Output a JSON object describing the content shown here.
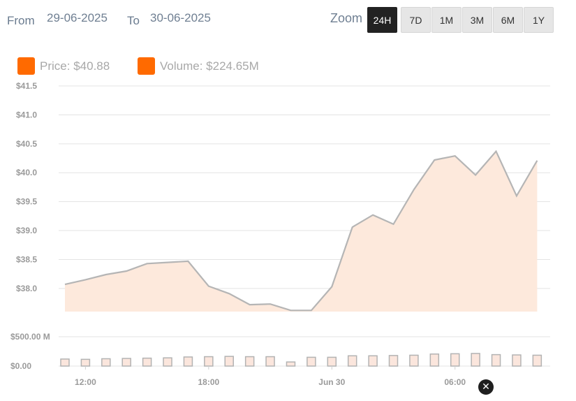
{
  "range": {
    "from_label": "From",
    "from_value": "29-06-2025",
    "to_label": "To",
    "to_value": "30-06-2025"
  },
  "zoom": {
    "label": "Zoom",
    "buttons": [
      "24H",
      "7D",
      "1M",
      "3M",
      "6M",
      "1Y"
    ],
    "active": "24H"
  },
  "legend": {
    "price_label": "Price:",
    "price_value": "$40.88",
    "volume_label": "Volume:",
    "volume_value": "$224.65M",
    "price_color": "#ff6a00",
    "volume_color": "#ff6a00"
  },
  "reset_icon": "close-circle-icon",
  "chart_data": {
    "type": "area",
    "price_axis": {
      "min": 37.6,
      "max": 41.5,
      "ticks": [
        "$38.0",
        "$38.5",
        "$39.0",
        "$39.5",
        "$40.0",
        "$40.5",
        "$41.0",
        "$41.5"
      ],
      "tick_values": [
        38.0,
        38.5,
        39.0,
        39.5,
        40.0,
        40.5,
        41.0,
        41.5
      ]
    },
    "volume_axis": {
      "min": 0,
      "max": 500,
      "ticks": [
        "$0.00",
        "$500.00 M"
      ],
      "tick_values": [
        0,
        500
      ]
    },
    "x_axis": {
      "start_hour": 11,
      "end_hour": 34.6,
      "tick_labels": [
        "12:00",
        "18:00",
        "Jun 30",
        "06:00"
      ],
      "tick_hours": [
        12,
        18,
        24,
        30
      ]
    },
    "grid": true,
    "line_color": "#b5b5b5",
    "fill_color": "#fde9dc",
    "bar_fill": "#fbe6dd",
    "bar_stroke": "#b3b3b3",
    "price_series": {
      "hours": [
        11.0,
        12.0,
        13.0,
        14.0,
        15.0,
        16.0,
        17.0,
        18.0,
        19.0,
        20.0,
        21.0,
        22.0,
        23.0,
        24.0,
        25.0,
        26.0,
        27.0,
        28.0,
        29.0,
        30.0,
        31.0,
        32.0,
        33.0,
        34.0
      ],
      "values": [
        38.07,
        38.15,
        38.24,
        38.3,
        38.43,
        38.45,
        38.47,
        38.04,
        37.91,
        37.72,
        37.73,
        37.62,
        37.62,
        38.03,
        39.06,
        39.27,
        39.11,
        39.71,
        40.22,
        40.29,
        39.96,
        40.37,
        39.6,
        40.21
      ]
    },
    "volume_series": {
      "hours": [
        11.0,
        12.0,
        13.0,
        14.0,
        15.0,
        16.0,
        17.0,
        18.0,
        19.0,
        20.0,
        21.0,
        22.0,
        23.0,
        24.0,
        25.0,
        26.0,
        27.0,
        28.0,
        29.0,
        30.0,
        31.0,
        32.0,
        33.0,
        34.0
      ],
      "values": [
        120,
        115,
        125,
        130,
        135,
        140,
        155,
        160,
        165,
        160,
        160,
        70,
        150,
        150,
        175,
        175,
        180,
        185,
        205,
        210,
        215,
        195,
        190,
        185
      ]
    }
  }
}
